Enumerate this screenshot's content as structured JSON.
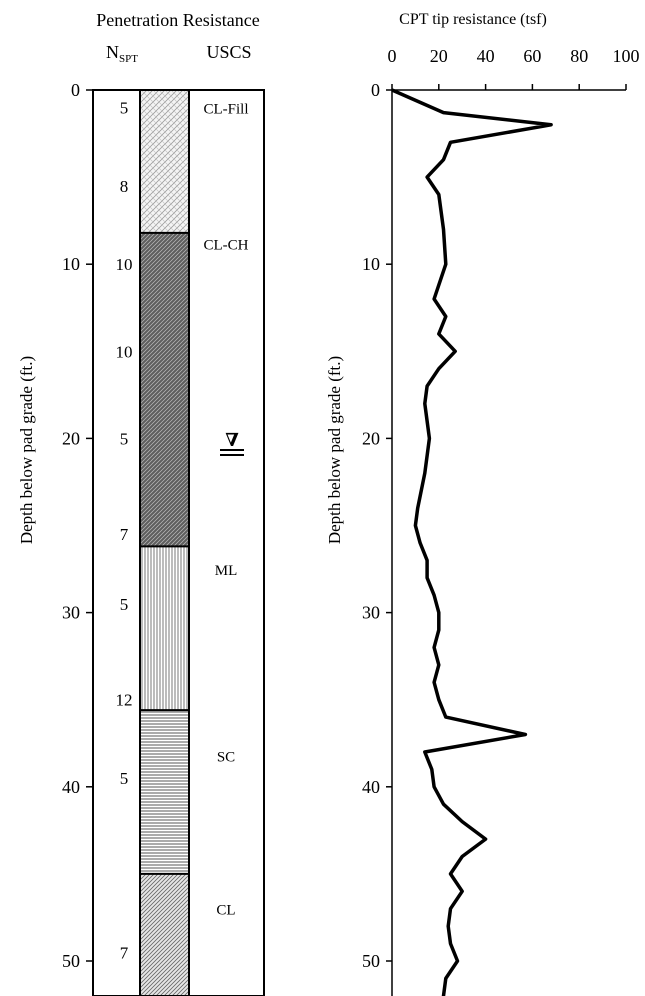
{
  "chart_data": [
    {
      "type": "table",
      "title": "Penetration Resistance",
      "ylabel": "Depth below pad grade (ft.)",
      "ylim": [
        0,
        52
      ],
      "yticks": [
        0,
        10,
        20,
        30,
        40,
        50
      ],
      "col_n_label_main": "N",
      "col_n_label_sub": "SPT",
      "col_uscs_label": "USCS",
      "nspt": [
        {
          "depth": 1,
          "value": "5"
        },
        {
          "depth": 5.5,
          "value": "8"
        },
        {
          "depth": 10,
          "value": "10"
        },
        {
          "depth": 15,
          "value": "10"
        },
        {
          "depth": 20,
          "value": "5"
        },
        {
          "depth": 25.5,
          "value": "7"
        },
        {
          "depth": 29.5,
          "value": "5"
        },
        {
          "depth": 35,
          "value": "12"
        },
        {
          "depth": 39.5,
          "value": "5"
        },
        {
          "depth": 49.5,
          "value": "7"
        }
      ],
      "layers": [
        {
          "top": 0,
          "bottom": 8.2,
          "uscs": "CL-Fill",
          "label_depth": 1,
          "pattern": "fill"
        },
        {
          "top": 8.2,
          "bottom": 26.2,
          "uscs": "CL-CH",
          "label_depth": 8.8,
          "pattern": "dense"
        },
        {
          "top": 26.2,
          "bottom": 35.6,
          "uscs": "ML",
          "label_depth": 27.5,
          "pattern": "vertical"
        },
        {
          "top": 35.6,
          "bottom": 45,
          "uscs": "SC",
          "label_depth": 38.2,
          "pattern": "horizontal"
        },
        {
          "top": 45,
          "bottom": 52,
          "uscs": "CL",
          "label_depth": 47,
          "pattern": "diagonal"
        }
      ],
      "water_table_depth": 20,
      "water_table_symbol": "∇"
    },
    {
      "type": "line",
      "title": "CPT tip resistance  (tsf)",
      "ylabel": "Depth below pad grade (ft.)",
      "xlim": [
        0,
        100
      ],
      "ylim": [
        0,
        52
      ],
      "xticks": [
        0,
        20,
        40,
        60,
        80,
        100
      ],
      "yticks": [
        0,
        10,
        20,
        30,
        40,
        50
      ],
      "series": [
        {
          "x": [
            0,
            22,
            68,
            25,
            22,
            15,
            20,
            22,
            23,
            18,
            23,
            20,
            27,
            20,
            15,
            14,
            15,
            16,
            14,
            11,
            10,
            12,
            15,
            15,
            18,
            20,
            20,
            18,
            20,
            18,
            20,
            23,
            57,
            14,
            17,
            18,
            22,
            30,
            40,
            30,
            25,
            30,
            25,
            24,
            25,
            28,
            23,
            22,
            24
          ],
          "y": [
            0,
            1.3,
            2,
            3,
            4,
            5,
            6,
            8,
            10,
            12,
            13,
            14,
            15,
            16,
            17,
            18,
            19,
            20,
            22,
            24,
            25,
            26,
            27,
            28,
            29,
            30,
            31,
            32,
            33,
            34,
            35,
            36,
            37,
            38,
            39,
            40,
            41,
            42,
            43,
            44,
            45,
            46,
            47,
            48,
            49,
            50,
            51,
            52,
            53
          ]
        }
      ]
    }
  ]
}
